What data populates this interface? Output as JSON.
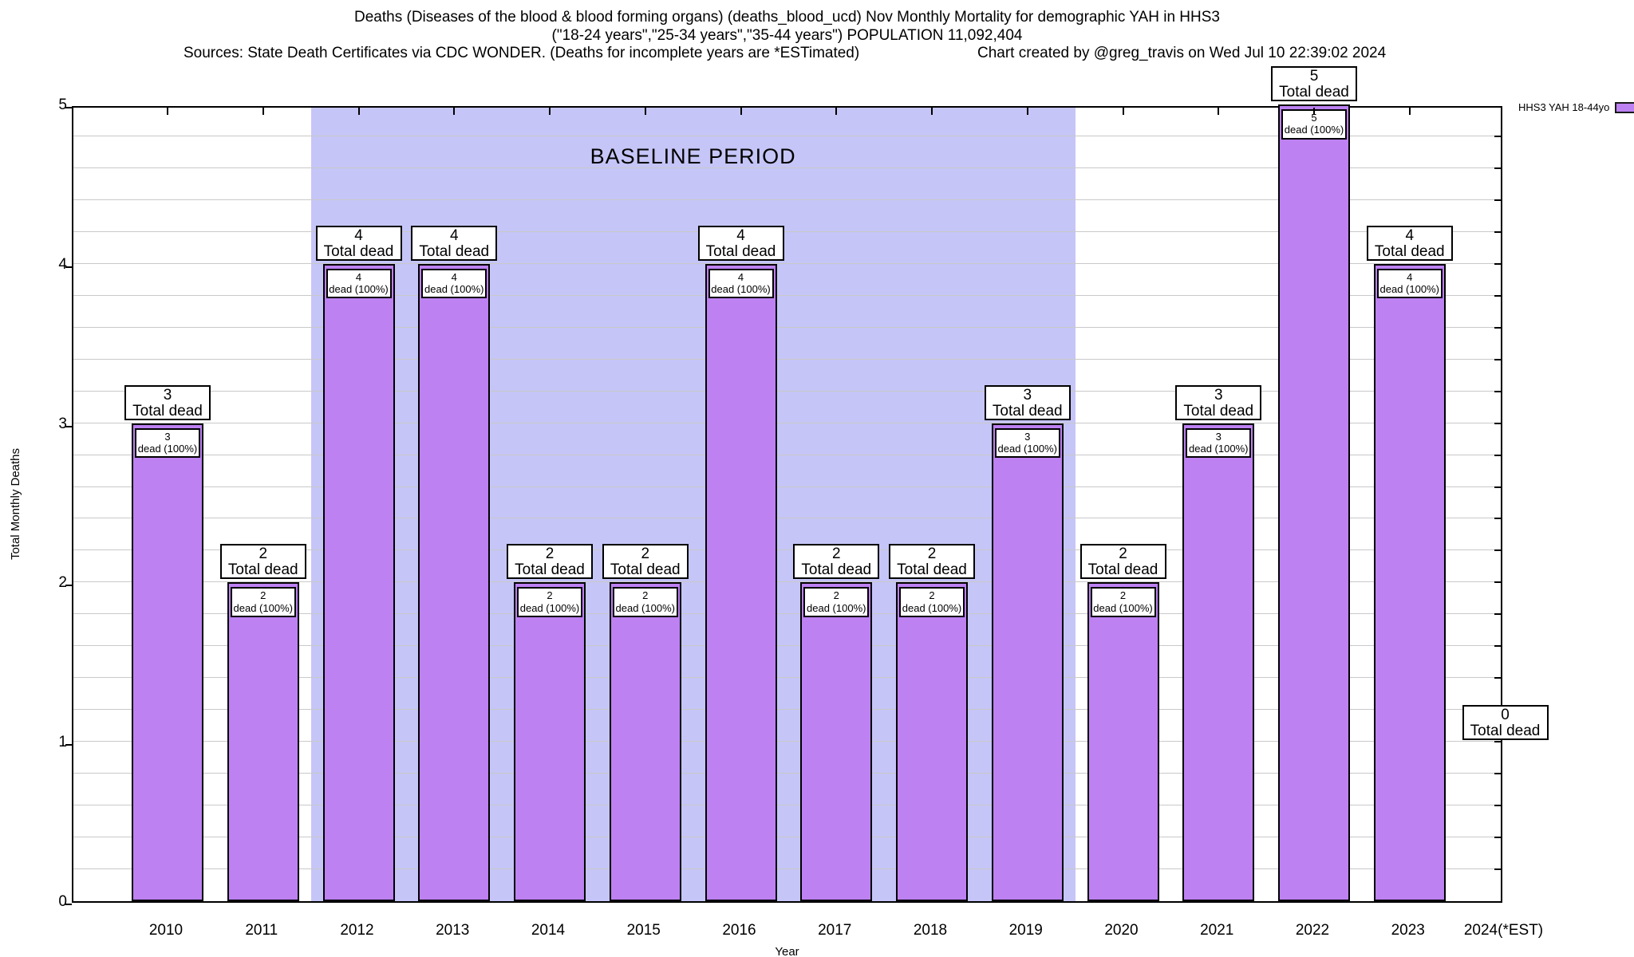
{
  "header": {
    "title_line1": "Deaths (Diseases of the blood & blood forming organs) (deaths_blood_ucd) Nov Monthly Mortality for demographic YAH in HHS3",
    "title_line2": "(\"18-24 years\",\"25-34 years\",\"35-44 years\") POPULATION 11,092,404",
    "sources_line": "Sources: State Death Certificates via CDC WONDER. (Deaths for incomplete years are *ESTimated)",
    "credit_line": "Chart created by @greg_travis on Wed Jul 10 22:39:02 2024"
  },
  "legend": {
    "label": "HHS3 YAH 18-44yo",
    "position": "top-right-outside"
  },
  "chart_data": {
    "type": "bar",
    "title": "Deaths (Diseases of the blood & blood forming organs) (deaths_blood_ucd) Nov Monthly Mortality for demographic YAH in HHS3 (\"18-24 years\",\"25-34 years\",\"35-44 years\") POPULATION 11,092,404",
    "xlabel": "Year",
    "ylabel": "Total Monthly Deaths",
    "ylim": [
      0,
      5
    ],
    "y_major_ticks": [
      0,
      1,
      2,
      3,
      4,
      5
    ],
    "y_minor_step": 0.2,
    "grid": true,
    "categories": [
      "2010",
      "2011",
      "2012",
      "2013",
      "2014",
      "2015",
      "2016",
      "2017",
      "2018",
      "2019",
      "2020",
      "2021",
      "2022",
      "2023",
      "2024(*EST)"
    ],
    "series": [
      {
        "name": "HHS3 YAH 18-44yo",
        "values": [
          3,
          2,
          4,
          4,
          2,
          2,
          4,
          2,
          2,
          3,
          2,
          3,
          5,
          4,
          0
        ]
      }
    ],
    "bar_total_label_suffix": "Total dead",
    "bar_inner_label_suffix": "dead (100%)",
    "baseline_band": {
      "label": "BASELINE PERIOD",
      "from_category": "2012",
      "to_category": "2019"
    },
    "colors": {
      "bar_fill": "#bd81f2",
      "bar_border": "#000000",
      "baseline_band": "#c5c5f7",
      "grid": "#c9c9c9",
      "background": "#ffffff"
    }
  }
}
